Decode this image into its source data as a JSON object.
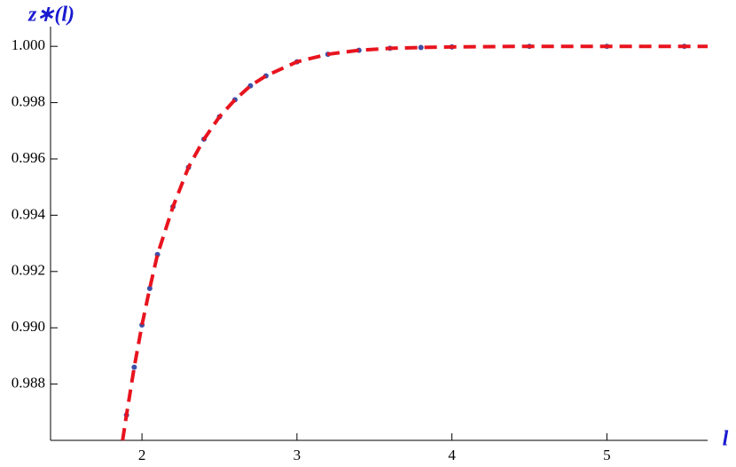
{
  "chart_data": {
    "type": "line",
    "ylabel": "z∗(l)",
    "xlabel": "l",
    "x": [
      1.875,
      1.9,
      1.95,
      2.0,
      2.05,
      2.1,
      2.2,
      2.3,
      2.4,
      2.5,
      2.6,
      2.7,
      2.8,
      3.0,
      3.2,
      3.4,
      3.6,
      3.8,
      4.0,
      4.5,
      5.0,
      5.5,
      5.65
    ],
    "series": [
      {
        "color": "#3d4fa8",
        "style": "dots",
        "values": [
          null,
          0.9869,
          0.9886,
          0.9901,
          0.9914,
          0.9926,
          0.9943,
          0.9957,
          0.9967,
          0.9975,
          0.9981,
          0.9986,
          0.99895,
          0.99945,
          0.99972,
          0.99986,
          0.99993,
          0.99996,
          0.99998,
          1.0,
          1.0,
          1.0,
          null
        ]
      },
      {
        "color": "#e8141e",
        "style": "dashed",
        "values": [
          0.986,
          0.9869,
          0.9886,
          0.9901,
          0.9914,
          0.9926,
          0.9943,
          0.9957,
          0.9967,
          0.9975,
          0.9981,
          0.9986,
          0.99895,
          0.99945,
          0.99972,
          0.99986,
          0.99993,
          0.99996,
          0.99998,
          1.0,
          1.0,
          1.0,
          1.0
        ]
      }
    ],
    "xlim": [
      1.41,
      5.65
    ],
    "ylim": [
      0.986,
      1.0007
    ],
    "xticks": [
      2,
      3,
      4,
      5
    ],
    "yticks": [
      0.988,
      {
        "value": 0.99,
        "label": "0.990"
      },
      0.992,
      0.994,
      0.996,
      0.998,
      {
        "value": 1.0,
        "label": "1.000"
      }
    ]
  }
}
